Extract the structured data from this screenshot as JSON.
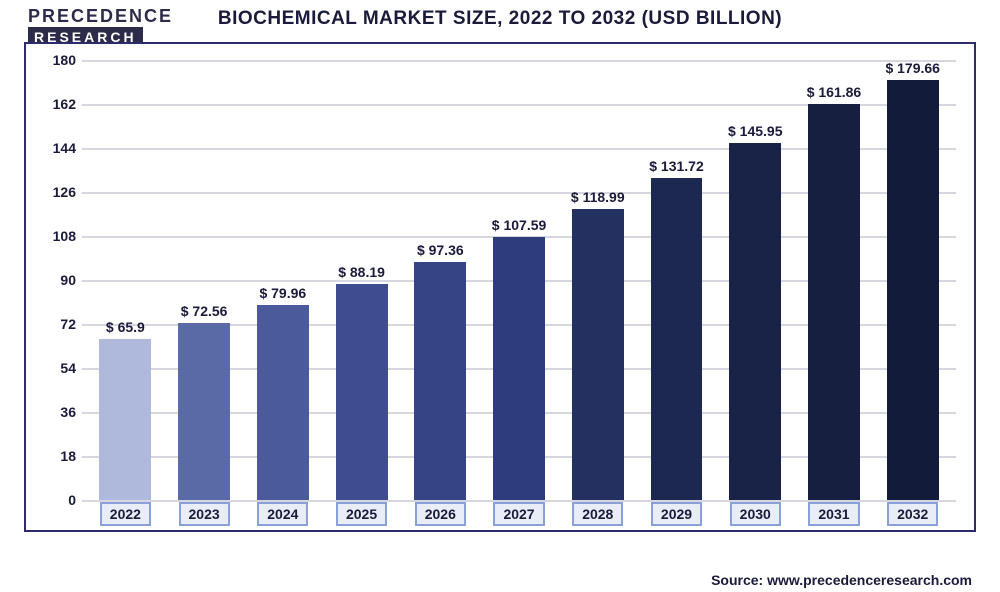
{
  "logo": {
    "line1": "PRECEDENCE",
    "line2": "RESEARCH"
  },
  "title": "BIOCHEMICAL MARKET SIZE, 2022 TO 2032 (USD BILLION)",
  "source": "Source: www.precedenceresearch.com",
  "chart": {
    "type": "bar",
    "ylim": [
      0,
      180
    ],
    "ytick_step": 18,
    "yticks": [
      0,
      18,
      36,
      54,
      72,
      90,
      108,
      126,
      144,
      162,
      180
    ],
    "grid_color": "#d6d6e0",
    "background_color": "#ffffff",
    "frame_color": "#2c2c6a",
    "label_fontsize": 14,
    "label_color": "#1a1a3a",
    "bar_width": 0.66,
    "categories": [
      "2022",
      "2023",
      "2024",
      "2025",
      "2026",
      "2027",
      "2028",
      "2029",
      "2030",
      "2031",
      "2032"
    ],
    "values": [
      65.9,
      72.56,
      79.96,
      88.19,
      97.36,
      107.59,
      118.99,
      131.72,
      145.95,
      161.86,
      179.66
    ],
    "value_labels": [
      "$ 65.9",
      "$ 72.56",
      "$ 79.96",
      "$ 88.19",
      "$ 97.36",
      "$ 107.59",
      "$ 118.99",
      "$ 131.72",
      "$ 145.95",
      "$ 161.86",
      "$ 179.66"
    ],
    "bar_colors": [
      "#aeb9dc",
      "#5a6aa6",
      "#4a5a9a",
      "#3f4d90",
      "#364486",
      "#2e3b7c",
      "#24305f",
      "#1d2850",
      "#192347",
      "#161f40",
      "#131b3a"
    ],
    "xlabel_border_colors": [
      "#8aa0d8",
      "#8aa0d8",
      "#8aa0d8",
      "#8aa0d8",
      "#8aa0d8",
      "#8aa0d8",
      "#8aa0d8",
      "#8aa0d8",
      "#8aa0d8",
      "#8aa0d8",
      "#8aa0d8"
    ],
    "xlabel_fill": "#e9edf7",
    "xlabel_text_color": "#1a1a3a"
  }
}
